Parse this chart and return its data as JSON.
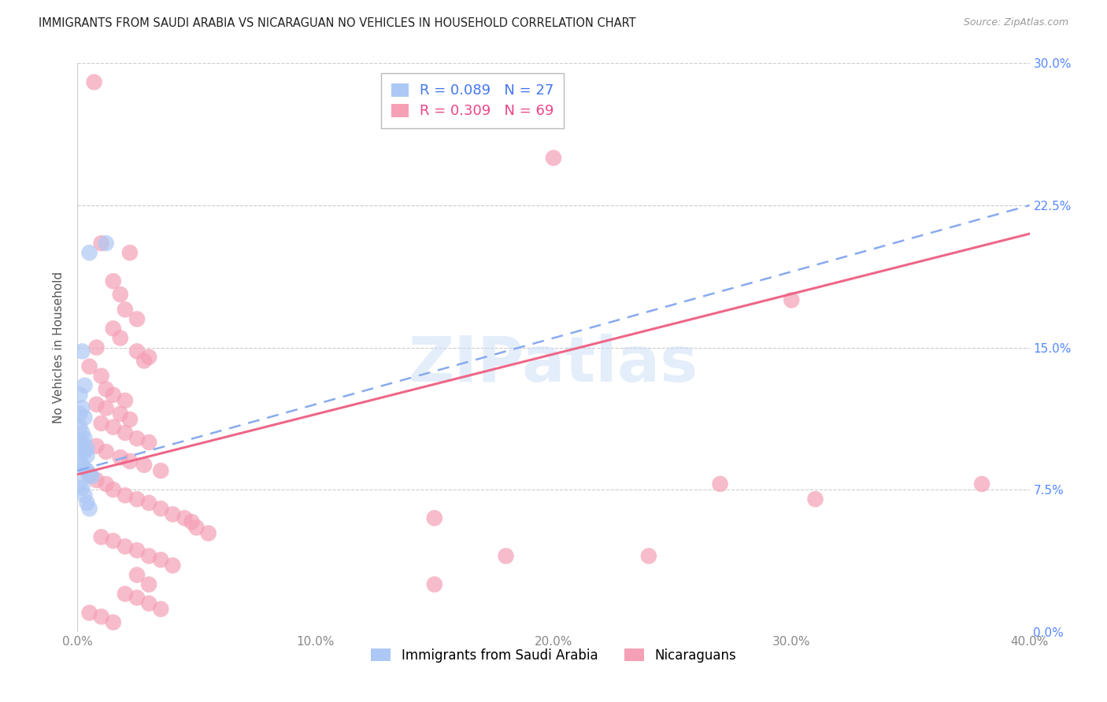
{
  "title": "IMMIGRANTS FROM SAUDI ARABIA VS NICARAGUAN NO VEHICLES IN HOUSEHOLD CORRELATION CHART",
  "source": "Source: ZipAtlas.com",
  "ylabel": "No Vehicles in Household",
  "xlim": [
    0.0,
    0.4
  ],
  "ylim": [
    0.0,
    0.3
  ],
  "xtick_vals": [
    0.0,
    0.1,
    0.2,
    0.3,
    0.4
  ],
  "xtick_labels": [
    "0.0%",
    "10.0%",
    "20.0%",
    "30.0%",
    "40.0%"
  ],
  "ytick_vals": [
    0.0,
    0.075,
    0.15,
    0.225,
    0.3
  ],
  "ytick_labels_right": [
    "0.0%",
    "7.5%",
    "15.0%",
    "22.5%",
    "30.0%"
  ],
  "watermark": "ZIPatlas",
  "saudi_color": "#adc8f5",
  "nicaraguan_color": "#f5a0b5",
  "saudi_line_color": "#5588dd",
  "saudi_line_color2": "#88aaee",
  "nicaraguan_line_color": "#ee6688",
  "legend_entries": [
    {
      "label_r": "R = 0.089",
      "label_n": "N = 27",
      "color": "#adc8f5"
    },
    {
      "label_r": "R = 0.309",
      "label_n": "N = 69",
      "color": "#f5a0b5"
    }
  ],
  "legend_bottom": [
    {
      "label": "Immigrants from Saudi Arabia",
      "color": "#adc8f5"
    },
    {
      "label": "Nicaraguans",
      "color": "#f5a0b5"
    }
  ],
  "saudi_line_x0": 0.0,
  "saudi_line_y0": 0.085,
  "saudi_line_x1": 0.4,
  "saudi_line_y1": 0.225,
  "nic_line_x0": 0.0,
  "nic_line_y0": 0.083,
  "nic_line_x1": 0.4,
  "nic_line_y1": 0.21,
  "saudi_scatter": [
    [
      0.005,
      0.2
    ],
    [
      0.012,
      0.205
    ],
    [
      0.002,
      0.148
    ],
    [
      0.003,
      0.13
    ],
    [
      0.001,
      0.125
    ],
    [
      0.002,
      0.118
    ],
    [
      0.001,
      0.115
    ],
    [
      0.003,
      0.113
    ],
    [
      0.001,
      0.108
    ],
    [
      0.002,
      0.105
    ],
    [
      0.003,
      0.102
    ],
    [
      0.002,
      0.1
    ],
    [
      0.001,
      0.098
    ],
    [
      0.004,
      0.097
    ],
    [
      0.003,
      0.095
    ],
    [
      0.004,
      0.093
    ],
    [
      0.001,
      0.09
    ],
    [
      0.002,
      0.088
    ],
    [
      0.003,
      0.086
    ],
    [
      0.004,
      0.085
    ],
    [
      0.005,
      0.083
    ],
    [
      0.006,
      0.082
    ],
    [
      0.001,
      0.078
    ],
    [
      0.002,
      0.076
    ],
    [
      0.003,
      0.072
    ],
    [
      0.004,
      0.068
    ],
    [
      0.005,
      0.065
    ]
  ],
  "nicaraguan_scatter": [
    [
      0.007,
      0.29
    ],
    [
      0.01,
      0.205
    ],
    [
      0.022,
      0.2
    ],
    [
      0.015,
      0.185
    ],
    [
      0.018,
      0.178
    ],
    [
      0.02,
      0.17
    ],
    [
      0.025,
      0.165
    ],
    [
      0.015,
      0.16
    ],
    [
      0.018,
      0.155
    ],
    [
      0.008,
      0.15
    ],
    [
      0.025,
      0.148
    ],
    [
      0.03,
      0.145
    ],
    [
      0.028,
      0.143
    ],
    [
      0.005,
      0.14
    ],
    [
      0.01,
      0.135
    ],
    [
      0.012,
      0.128
    ],
    [
      0.015,
      0.125
    ],
    [
      0.02,
      0.122
    ],
    [
      0.008,
      0.12
    ],
    [
      0.012,
      0.118
    ],
    [
      0.018,
      0.115
    ],
    [
      0.022,
      0.112
    ],
    [
      0.01,
      0.11
    ],
    [
      0.015,
      0.108
    ],
    [
      0.02,
      0.105
    ],
    [
      0.025,
      0.102
    ],
    [
      0.03,
      0.1
    ],
    [
      0.008,
      0.098
    ],
    [
      0.012,
      0.095
    ],
    [
      0.018,
      0.092
    ],
    [
      0.022,
      0.09
    ],
    [
      0.028,
      0.088
    ],
    [
      0.035,
      0.085
    ],
    [
      0.005,
      0.083
    ],
    [
      0.008,
      0.08
    ],
    [
      0.012,
      0.078
    ],
    [
      0.015,
      0.075
    ],
    [
      0.02,
      0.072
    ],
    [
      0.025,
      0.07
    ],
    [
      0.03,
      0.068
    ],
    [
      0.035,
      0.065
    ],
    [
      0.04,
      0.062
    ],
    [
      0.045,
      0.06
    ],
    [
      0.048,
      0.058
    ],
    [
      0.05,
      0.055
    ],
    [
      0.055,
      0.052
    ],
    [
      0.01,
      0.05
    ],
    [
      0.015,
      0.048
    ],
    [
      0.02,
      0.045
    ],
    [
      0.025,
      0.043
    ],
    [
      0.03,
      0.04
    ],
    [
      0.035,
      0.038
    ],
    [
      0.04,
      0.035
    ],
    [
      0.025,
      0.03
    ],
    [
      0.03,
      0.025
    ],
    [
      0.02,
      0.02
    ],
    [
      0.025,
      0.018
    ],
    [
      0.03,
      0.015
    ],
    [
      0.035,
      0.012
    ],
    [
      0.005,
      0.01
    ],
    [
      0.01,
      0.008
    ],
    [
      0.015,
      0.005
    ],
    [
      0.27,
      0.078
    ],
    [
      0.2,
      0.25
    ],
    [
      0.15,
      0.06
    ],
    [
      0.3,
      0.175
    ],
    [
      0.38,
      0.078
    ],
    [
      0.31,
      0.07
    ],
    [
      0.18,
      0.04
    ],
    [
      0.15,
      0.025
    ],
    [
      0.24,
      0.04
    ]
  ]
}
